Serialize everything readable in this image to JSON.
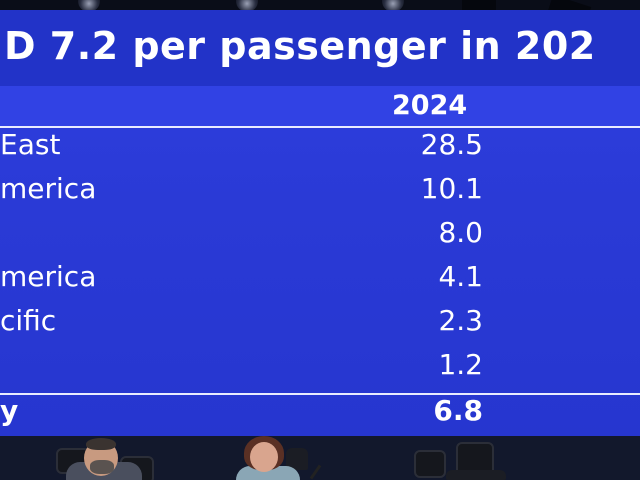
{
  "slide": {
    "title_fragment": "D 7.2 per passenger in 202",
    "column_header": "2024",
    "rows": [
      {
        "region": "East",
        "value": "28.5"
      },
      {
        "region": "merica",
        "value": "10.1"
      },
      {
        "region": "",
        "value": "8.0"
      },
      {
        "region": "merica",
        "value": "4.1"
      },
      {
        "region": "cific",
        "value": "2.3"
      },
      {
        "region": "",
        "value": "1.2"
      }
    ],
    "total": {
      "region": "y",
      "value": "6.8"
    }
  },
  "colors": {
    "screen_blue": "#2a3ad6",
    "text": "#ffffff",
    "stage": "#12182c"
  }
}
